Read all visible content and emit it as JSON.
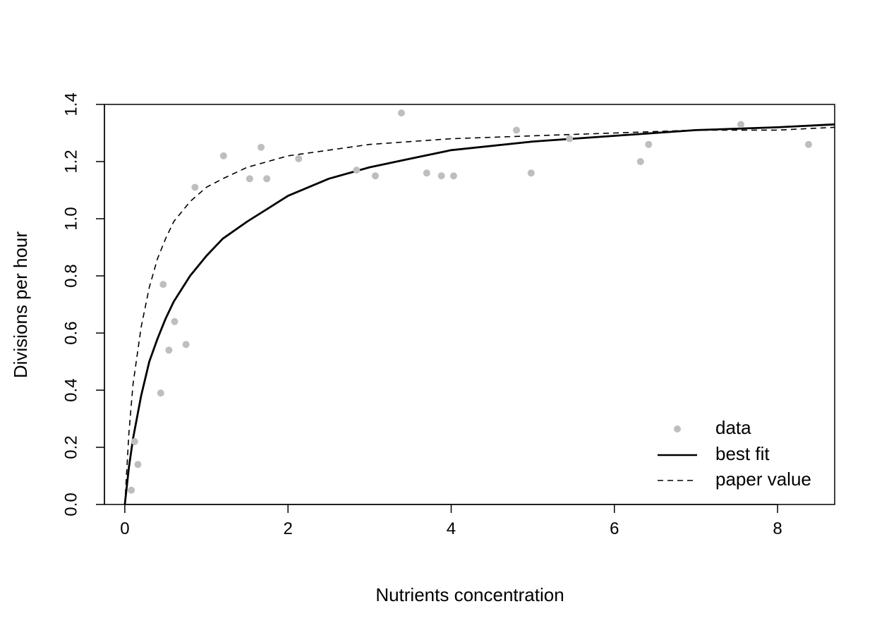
{
  "chart_data": {
    "type": "scatter",
    "title": "",
    "xlabel": "Nutrients concentration",
    "ylabel": "Divisions per hour",
    "xlim": [
      -0.25,
      8.7
    ],
    "ylim": [
      0,
      1.4
    ],
    "x_ticks": [
      0,
      2,
      4,
      6,
      8
    ],
    "y_ticks": [
      0.0,
      0.2,
      0.4,
      0.6,
      0.8,
      1.0,
      1.2,
      1.4
    ],
    "x_tick_labels": [
      "0",
      "2",
      "4",
      "6",
      "8"
    ],
    "y_tick_labels": [
      "0.0",
      "0.2",
      "0.4",
      "0.6",
      "0.8",
      "1.0",
      "1.2",
      "1.4"
    ],
    "grid": false,
    "legend_position": "bottom-right",
    "colors": {
      "data": "#bebebe",
      "best_fit": "#000000",
      "paper_value": "#000000"
    },
    "series": [
      {
        "name": "data",
        "kind": "points",
        "points": [
          [
            0.08,
            0.05
          ],
          [
            0.12,
            0.22
          ],
          [
            0.16,
            0.14
          ],
          [
            0.44,
            0.39
          ],
          [
            0.47,
            0.77
          ],
          [
            0.54,
            0.54
          ],
          [
            0.61,
            0.64
          ],
          [
            0.75,
            0.56
          ],
          [
            0.86,
            1.11
          ],
          [
            1.21,
            1.22
          ],
          [
            1.53,
            1.14
          ],
          [
            1.67,
            1.25
          ],
          [
            1.74,
            1.14
          ],
          [
            2.13,
            1.21
          ],
          [
            2.84,
            1.17
          ],
          [
            3.07,
            1.15
          ],
          [
            3.39,
            1.37
          ],
          [
            3.7,
            1.16
          ],
          [
            3.88,
            1.15
          ],
          [
            4.03,
            1.15
          ],
          [
            4.8,
            1.31
          ],
          [
            4.98,
            1.16
          ],
          [
            5.45,
            1.28
          ],
          [
            6.32,
            1.2
          ],
          [
            6.42,
            1.26
          ],
          [
            7.55,
            1.33
          ],
          [
            8.38,
            1.26
          ]
        ]
      },
      {
        "name": "best fit",
        "kind": "curve",
        "line_style": "solid",
        "points": [
          [
            0.0,
            0.0
          ],
          [
            0.05,
            0.13
          ],
          [
            0.1,
            0.23
          ],
          [
            0.2,
            0.38
          ],
          [
            0.3,
            0.5
          ],
          [
            0.4,
            0.58
          ],
          [
            0.5,
            0.65
          ],
          [
            0.6,
            0.71
          ],
          [
            0.8,
            0.8
          ],
          [
            1.0,
            0.87
          ],
          [
            1.2,
            0.93
          ],
          [
            1.5,
            0.99
          ],
          [
            2.0,
            1.08
          ],
          [
            2.5,
            1.14
          ],
          [
            3.0,
            1.18
          ],
          [
            3.5,
            1.21
          ],
          [
            4.0,
            1.24
          ],
          [
            5.0,
            1.27
          ],
          [
            6.0,
            1.29
          ],
          [
            7.0,
            1.31
          ],
          [
            8.0,
            1.32
          ],
          [
            8.7,
            1.33
          ]
        ]
      },
      {
        "name": "paper value",
        "kind": "curve",
        "line_style": "dashed",
        "points": [
          [
            0.0,
            0.0
          ],
          [
            0.05,
            0.25
          ],
          [
            0.1,
            0.42
          ],
          [
            0.2,
            0.62
          ],
          [
            0.3,
            0.76
          ],
          [
            0.4,
            0.86
          ],
          [
            0.5,
            0.93
          ],
          [
            0.6,
            0.99
          ],
          [
            0.8,
            1.06
          ],
          [
            1.0,
            1.11
          ],
          [
            1.2,
            1.14
          ],
          [
            1.5,
            1.18
          ],
          [
            2.0,
            1.22
          ],
          [
            2.5,
            1.24
          ],
          [
            3.0,
            1.26
          ],
          [
            4.0,
            1.28
          ],
          [
            5.0,
            1.29
          ],
          [
            6.0,
            1.3
          ],
          [
            7.0,
            1.31
          ],
          [
            8.0,
            1.31
          ],
          [
            8.7,
            1.32
          ]
        ]
      }
    ]
  }
}
